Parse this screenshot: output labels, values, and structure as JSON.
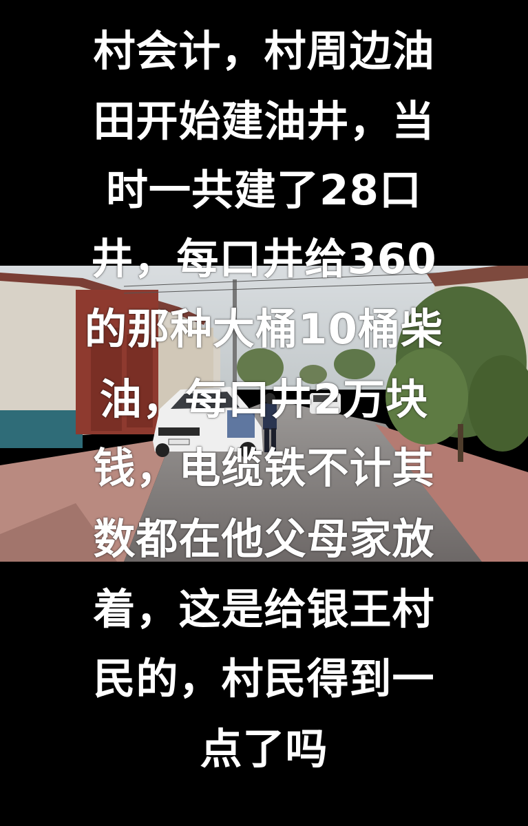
{
  "caption": {
    "lines": [
      "村会计，村周边油",
      "田开始建油井，当",
      "时一共建了28口",
      "井，每口井给360",
      "的那种大桶10桶柴",
      "油，每口井2万块",
      "钱，电缆铁不计其",
      "数都在他父母家放",
      "着，这是给银王村",
      "民的，村民得到一",
      "点了吗"
    ]
  },
  "photo": {
    "description_colors": {
      "sky": "#c9d0d3",
      "road": "#8b8583",
      "sidewalk": "#b9827a",
      "wall": "#d8d2c5",
      "tree": "#55723f"
    }
  }
}
